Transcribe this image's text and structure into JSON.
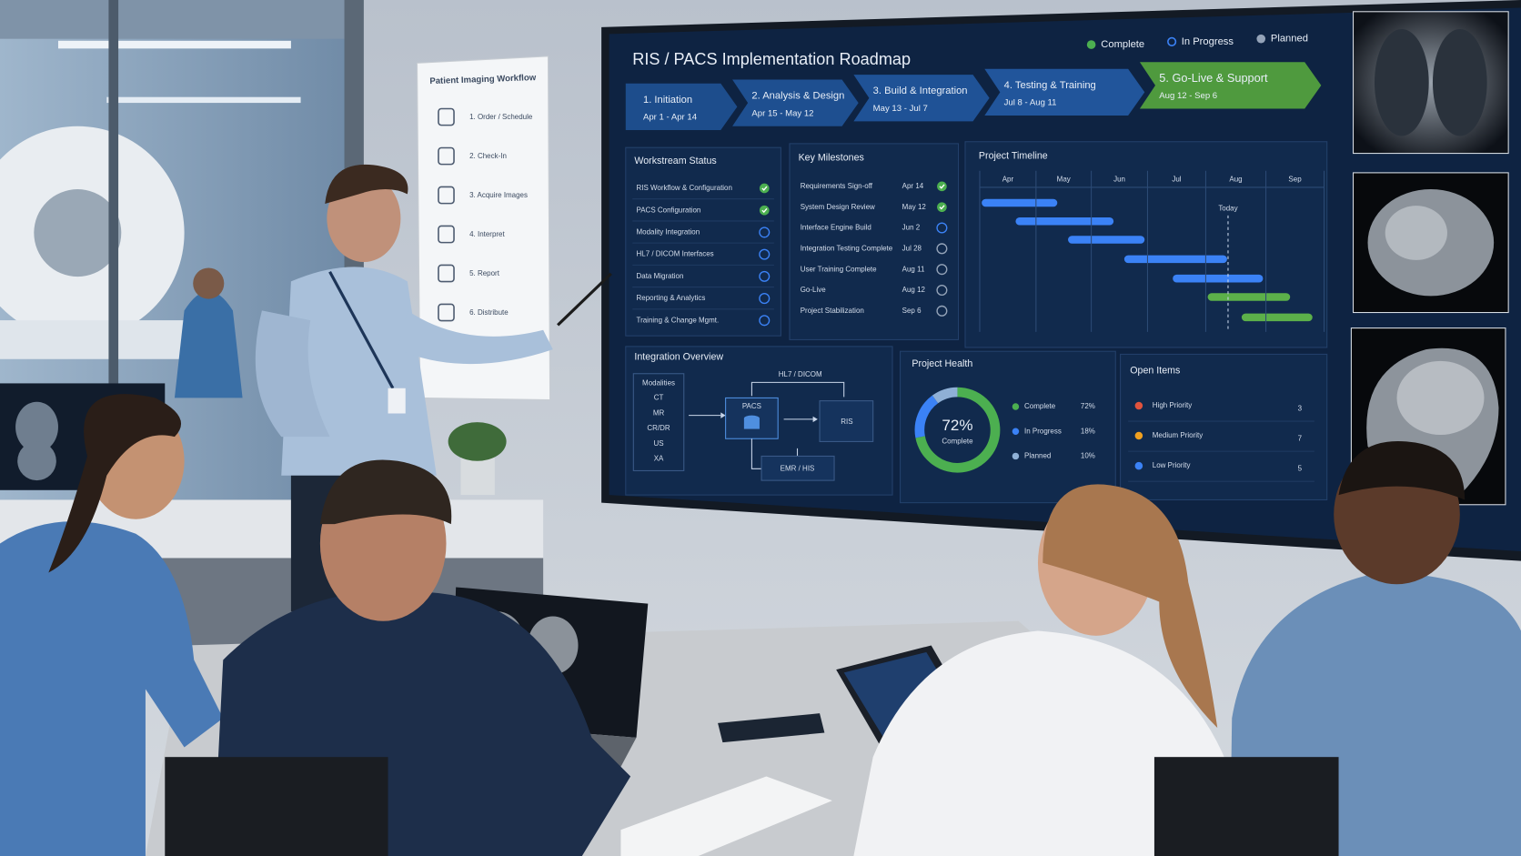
{
  "whiteboard": {
    "title": "Patient Imaging Workflow",
    "steps": [
      "1. Order / Schedule",
      "2. Check-In",
      "3. Acquire Images",
      "4. Interpret",
      "5. Report",
      "6. Distribute"
    ]
  },
  "dashboard": {
    "title": "RIS / PACS Implementation Roadmap",
    "legend": [
      {
        "label": "Complete",
        "status": "complete"
      },
      {
        "label": "In Progress",
        "status": "in_progress"
      },
      {
        "label": "Planned",
        "status": "planned"
      }
    ],
    "phases": [
      {
        "name": "1. Initiation",
        "dates": "Apr 1 - Apr 14"
      },
      {
        "name": "2. Analysis & Design",
        "dates": "Apr 15 - May 12"
      },
      {
        "name": "3. Build & Integration",
        "dates": "May 13 - Jul 7"
      },
      {
        "name": "4. Testing & Training",
        "dates": "Jul 8 - Aug 11"
      },
      {
        "name": "5. Go-Live & Support",
        "dates": "Aug 12 - Sep 6"
      }
    ],
    "workstream_status": {
      "title": "Workstream Status",
      "items": [
        {
          "name": "RIS Workflow & Configuration",
          "status": "complete"
        },
        {
          "name": "PACS Configuration",
          "status": "complete"
        },
        {
          "name": "Modality Integration",
          "status": "in_progress"
        },
        {
          "name": "HL7 / DICOM Interfaces",
          "status": "in_progress"
        },
        {
          "name": "Data Migration",
          "status": "in_progress"
        },
        {
          "name": "Reporting & Analytics",
          "status": "in_progress"
        },
        {
          "name": "Training & Change Mgmt.",
          "status": "in_progress"
        }
      ]
    },
    "key_milestones": {
      "title": "Key Milestones",
      "items": [
        {
          "name": "Requirements Sign-off",
          "date": "Apr 14",
          "status": "complete"
        },
        {
          "name": "System Design Review",
          "date": "May 12",
          "status": "complete"
        },
        {
          "name": "Interface Engine Build",
          "date": "Jun 2",
          "status": "in_progress"
        },
        {
          "name": "Integration Testing Complete",
          "date": "Jul 28",
          "status": "planned"
        },
        {
          "name": "User Training Complete",
          "date": "Aug 11",
          "status": "planned"
        },
        {
          "name": "Go-Live",
          "date": "Aug 12",
          "status": "planned"
        },
        {
          "name": "Project Stabilization",
          "date": "Sep 6",
          "status": "planned"
        }
      ]
    },
    "project_timeline": {
      "title": "Project Timeline",
      "months": [
        "Apr",
        "May",
        "Jun",
        "Jul",
        "Aug",
        "Sep"
      ],
      "today_label": "Today"
    },
    "integration_overview": {
      "title": "Integration Overview",
      "modalities_title": "Modalities",
      "modalities": [
        "CT",
        "MR",
        "CR/DR",
        "US",
        "XA"
      ],
      "interface_label": "HL7 / DICOM",
      "pacs": "PACS",
      "ris": "RIS",
      "emr": "EMR / HIS"
    },
    "project_health": {
      "title": "Project Health",
      "center_value": "72%",
      "center_label": "Complete",
      "segments": [
        {
          "name": "Complete",
          "value": 72,
          "label": "72%"
        },
        {
          "name": "In Progress",
          "value": 18,
          "label": "18%"
        },
        {
          "name": "Planned",
          "value": 10,
          "label": "10%"
        }
      ]
    },
    "open_items": {
      "title": "Open Items",
      "items": [
        {
          "name": "High Priority",
          "count": 3
        },
        {
          "name": "Medium Priority",
          "count": 7
        },
        {
          "name": "Low Priority",
          "count": 5
        }
      ]
    }
  }
}
